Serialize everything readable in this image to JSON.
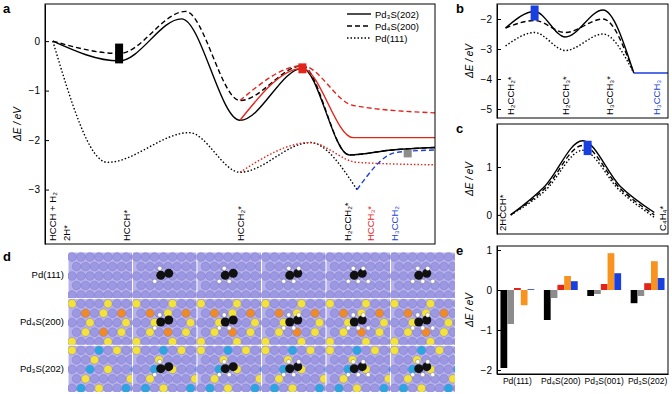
{
  "chart_data": [
    {
      "type": "line",
      "title": "a",
      "ylabel": "ΔE / eV",
      "xlim": [
        0,
        10
      ],
      "ylim": [
        -4.1,
        0.75
      ],
      "yticks": [
        -3,
        -2,
        -1,
        0
      ],
      "xticks": [
        {
          "value": 0.2,
          "label": "HCCH + H₂",
          "color": "#000000"
        },
        {
          "value": 0.55,
          "label": "2H*",
          "color": "#000000"
        },
        {
          "value": 2.1,
          "label": "HCCH*",
          "color": "#000000"
        },
        {
          "value": 5.0,
          "label": "HCCH₂*",
          "color": "#000000"
        },
        {
          "value": 7.75,
          "label": "H₂CCH₂*",
          "color": "#000000"
        },
        {
          "value": 8.35,
          "label": "HCCH₃*",
          "color": "#e3241b"
        },
        {
          "value": 8.95,
          "label": "H₃CCH₂",
          "color": "#1a3fe0"
        }
      ],
      "legend": "upper right",
      "series": [
        {
          "name": "Pd₃S(202)",
          "color": "#000000",
          "line_style": "solid",
          "x": [
            0.2,
            1.9,
            3.5,
            5.0,
            6.6,
            7.8,
            8.9,
            10
          ],
          "values": [
            0,
            -0.4,
            0.45,
            -1.6,
            -0.55,
            -2.3,
            -2.2,
            -2.15
          ]
        },
        {
          "name": "Pd₄S(200)",
          "color": "#000000",
          "line_style": "dashed",
          "x": [
            0.2,
            1.9,
            3.6,
            5.0,
            6.6,
            7.8,
            8.9,
            10
          ],
          "values": [
            0,
            -0.25,
            0.6,
            -1.2,
            -0.5,
            -2.3,
            -2.2,
            -2.15
          ]
        },
        {
          "name": "Pd(111)",
          "color": "#000000",
          "line_style": "dotted",
          "x": [
            0.2,
            1.6,
            3.7,
            5.0,
            6.8,
            8.0
          ],
          "values": [
            0,
            -2.45,
            -1.85,
            -2.65,
            -2.05,
            -3.0
          ]
        },
        {
          "color": "#e3241b",
          "line_style": "solid",
          "x": [
            5.0,
            6.6,
            7.9,
            10
          ],
          "values": [
            -1.6,
            -0.55,
            -1.95,
            -1.95
          ]
        },
        {
          "color": "#e3241b",
          "line_style": "dashed",
          "x": [
            5.0,
            6.6,
            7.9,
            10
          ],
          "values": [
            -1.2,
            -0.5,
            -1.3,
            -1.45
          ]
        },
        {
          "color": "#e3241b",
          "line_style": "dotted",
          "x": [
            5.0,
            6.8,
            8.0,
            10
          ],
          "values": [
            -2.65,
            -2.05,
            -2.45,
            -2.5
          ]
        },
        {
          "color": "#1a3fe0",
          "line_style": "dashed",
          "x": [
            8.0,
            9.0,
            10
          ],
          "values": [
            -3.0,
            -2.25,
            -2.2
          ]
        }
      ],
      "highlights": [
        {
          "x": 1.9,
          "values": [
            -0.05,
            -0.45
          ],
          "color": "#000000"
        },
        {
          "x": 6.6,
          "values": [
            -0.45,
            -0.65
          ],
          "color": "#e3241b"
        },
        {
          "x": 9.3,
          "values": [
            -2.2,
            -2.35
          ],
          "color": "#8c8c8c"
        }
      ]
    },
    {
      "type": "line",
      "title": "b",
      "ylabel": "ΔE / eV",
      "xlim": [
        0,
        10
      ],
      "ylim": [
        -5.3,
        -1.5
      ],
      "yticks": [
        -5,
        -4,
        -3,
        -2
      ],
      "xticks": [
        {
          "value": 0.8,
          "label": "H₂CCH₂*",
          "color": "#000000"
        },
        {
          "value": 4.0,
          "label": "H₂CCH₃*",
          "color": "#000000"
        },
        {
          "value": 6.6,
          "label": "H₃CCH₃*",
          "color": "#000000"
        },
        {
          "value": 9.3,
          "label": "H₃CCH₃",
          "color": "#1a3fe0"
        }
      ],
      "series": [
        {
          "color": "#000000",
          "line_style": "solid",
          "x": [
            0.5,
            2.2,
            4.0,
            6.2,
            8.0
          ],
          "values": [
            -2.3,
            -1.75,
            -2.6,
            -1.7,
            -3.8
          ]
        },
        {
          "color": "#000000",
          "line_style": "dashed",
          "x": [
            0.5,
            2.2,
            4.0,
            6.2,
            8.0
          ],
          "values": [
            -2.3,
            -2.05,
            -2.45,
            -2.0,
            -3.8
          ]
        },
        {
          "color": "#000000",
          "line_style": "dotted",
          "x": [
            0.5,
            2.2,
            4.0,
            6.2,
            8.0
          ],
          "values": [
            -2.9,
            -2.45,
            -3.05,
            -2.5,
            -3.8
          ]
        },
        {
          "color": "#1a3fe0",
          "line_style": "solid",
          "x": [
            8.0,
            10
          ],
          "values": [
            -3.8,
            -3.8
          ]
        }
      ],
      "highlights": [
        {
          "x": 2.2,
          "values": [
            -1.55,
            -2.05
          ],
          "color": "#1a3fe0"
        }
      ]
    },
    {
      "type": "line",
      "title": "c",
      "ylabel": "ΔE / eV",
      "xlim": [
        0,
        10
      ],
      "ylim": [
        -0.4,
        1.9
      ],
      "yticks": [
        0,
        1
      ],
      "xticks": [
        {
          "value": 0.3,
          "label": "2HCCH*",
          "color": "#000000"
        },
        {
          "value": 9.7,
          "label": "C₄H₄*",
          "color": "#000000"
        }
      ],
      "series": [
        {
          "color": "#000000",
          "line_style": "solid",
          "x": [
            0.8,
            2.8,
            5.0,
            7.2,
            9.2
          ],
          "values": [
            0,
            0.6,
            1.55,
            0.6,
            0.05
          ]
        },
        {
          "color": "#000000",
          "line_style": "dashed",
          "x": [
            0.8,
            2.8,
            5.0,
            7.2,
            9.2
          ],
          "values": [
            0,
            0.55,
            1.45,
            0.55,
            0.0
          ]
        },
        {
          "color": "#000000",
          "line_style": "dotted",
          "x": [
            0.8,
            2.8,
            5.0,
            7.2,
            9.2
          ],
          "values": [
            0,
            0.5,
            1.35,
            0.5,
            -0.05
          ]
        }
      ],
      "highlights": [
        {
          "x": 5.3,
          "values": [
            1.25,
            1.55
          ],
          "color": "#1a3fe0"
        }
      ]
    },
    {
      "type": "bar",
      "title": "e",
      "ylabel": "ΔE / eV",
      "categories": [
        "Pd(111)",
        "Pd₄S(200)",
        "Pd₃S(001)",
        "Pd₃S(202)"
      ],
      "ylim": [
        -2.1,
        1.1
      ],
      "yticks": [
        -2,
        -1,
        0,
        1
      ],
      "series": [
        {
          "color": "#000000",
          "values": [
            -1.95,
            -0.75,
            -0.15,
            -0.33
          ]
        },
        {
          "color": "#8c8c8c",
          "values": [
            -0.85,
            -0.2,
            -0.1,
            -0.15
          ]
        },
        {
          "color": "#e3241b",
          "values": [
            0.05,
            0.13,
            0.15,
            0.17
          ]
        },
        {
          "color": "#f7931e",
          "values": [
            -0.38,
            0.35,
            0.92,
            0.72
          ]
        },
        {
          "color": "#1a3fe0",
          "values": [
            0.02,
            0.22,
            0.42,
            0.3
          ]
        }
      ]
    }
  ],
  "structures": {
    "title": "d",
    "rows": [
      "Pd(111)",
      "Pd₄S(200)",
      "Pd₃S(202)"
    ]
  }
}
